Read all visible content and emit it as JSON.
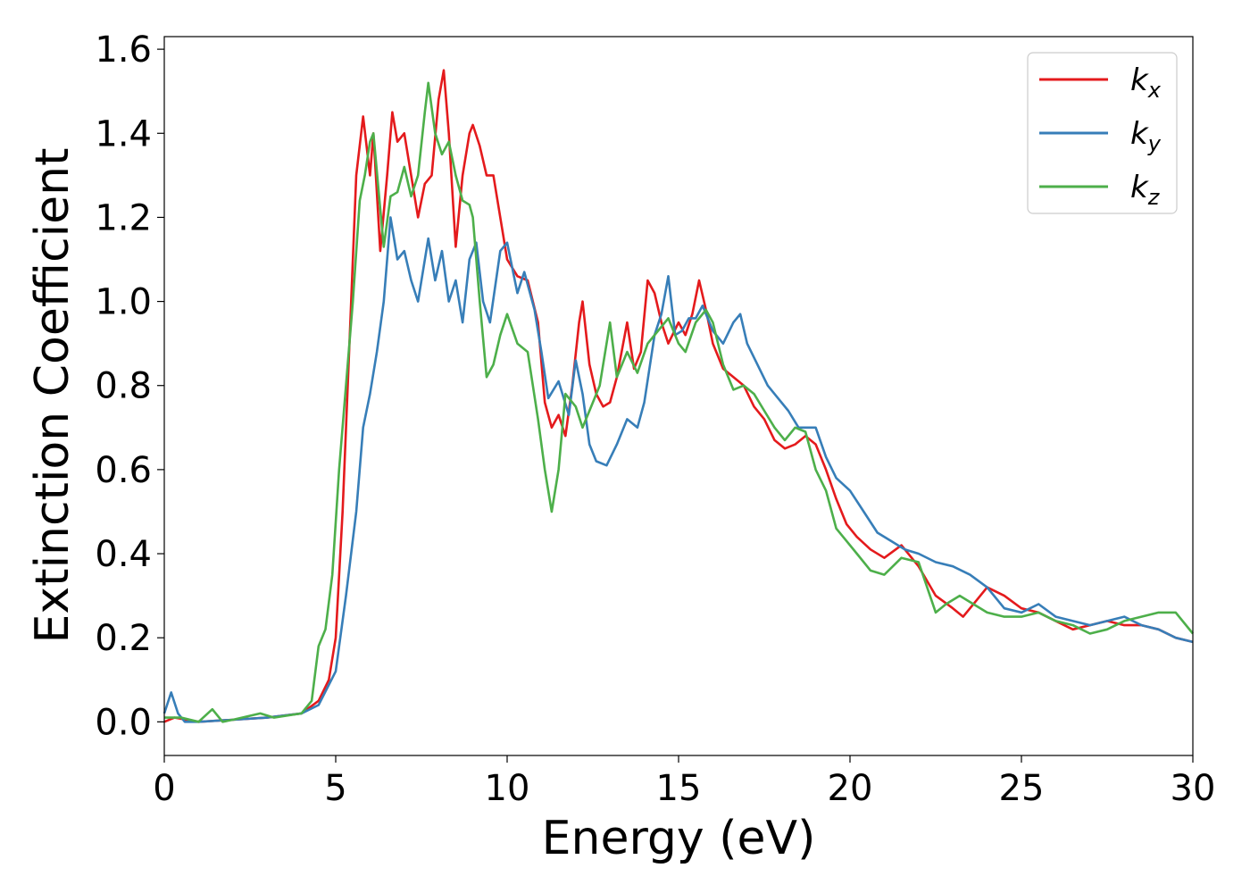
{
  "chart_data": {
    "type": "line",
    "xlabel": "Energy (eV)",
    "ylabel": "Extinction Coefficient",
    "xlim": [
      0,
      30
    ],
    "ylim": [
      -0.08,
      1.63
    ],
    "xticks": [
      0,
      5,
      10,
      15,
      20,
      25,
      30
    ],
    "xtick_labels": [
      "0",
      "5",
      "10",
      "15",
      "20",
      "25",
      "30"
    ],
    "yticks": [
      0.0,
      0.2,
      0.4,
      0.6,
      0.8,
      1.0,
      1.2,
      1.4,
      1.6
    ],
    "ytick_labels": [
      "0.0",
      "0.2",
      "0.4",
      "0.6",
      "0.8",
      "1.0",
      "1.2",
      "1.4",
      "1.6"
    ],
    "grid": false,
    "legend_position": "top-right",
    "series": [
      {
        "name": "k_x",
        "label_base": "k",
        "label_sub": "x",
        "color": "#e41a1c",
        "points": [
          [
            0,
            0.0
          ],
          [
            0.3,
            0.01
          ],
          [
            1,
            0.0
          ],
          [
            2,
            0.005
          ],
          [
            3,
            0.01
          ],
          [
            4,
            0.02
          ],
          [
            4.5,
            0.05
          ],
          [
            4.8,
            0.1
          ],
          [
            5.0,
            0.2
          ],
          [
            5.2,
            0.5
          ],
          [
            5.4,
            0.9
          ],
          [
            5.6,
            1.3
          ],
          [
            5.8,
            1.44
          ],
          [
            6.0,
            1.3
          ],
          [
            6.1,
            1.4
          ],
          [
            6.3,
            1.12
          ],
          [
            6.5,
            1.3
          ],
          [
            6.65,
            1.45
          ],
          [
            6.8,
            1.38
          ],
          [
            7.0,
            1.4
          ],
          [
            7.2,
            1.3
          ],
          [
            7.4,
            1.2
          ],
          [
            7.6,
            1.28
          ],
          [
            7.8,
            1.3
          ],
          [
            8.0,
            1.48
          ],
          [
            8.15,
            1.55
          ],
          [
            8.3,
            1.4
          ],
          [
            8.5,
            1.13
          ],
          [
            8.7,
            1.3
          ],
          [
            8.9,
            1.4
          ],
          [
            9.0,
            1.42
          ],
          [
            9.2,
            1.37
          ],
          [
            9.4,
            1.3
          ],
          [
            9.6,
            1.3
          ],
          [
            9.8,
            1.2
          ],
          [
            10.0,
            1.1
          ],
          [
            10.3,
            1.06
          ],
          [
            10.6,
            1.05
          ],
          [
            10.9,
            0.95
          ],
          [
            11.1,
            0.76
          ],
          [
            11.3,
            0.7
          ],
          [
            11.5,
            0.73
          ],
          [
            11.7,
            0.68
          ],
          [
            11.9,
            0.8
          ],
          [
            12.1,
            0.95
          ],
          [
            12.2,
            1.0
          ],
          [
            12.4,
            0.85
          ],
          [
            12.6,
            0.78
          ],
          [
            12.8,
            0.75
          ],
          [
            13.0,
            0.76
          ],
          [
            13.2,
            0.82
          ],
          [
            13.5,
            0.95
          ],
          [
            13.7,
            0.84
          ],
          [
            13.9,
            0.88
          ],
          [
            14.1,
            1.05
          ],
          [
            14.3,
            1.02
          ],
          [
            14.5,
            0.95
          ],
          [
            14.7,
            0.9
          ],
          [
            15.0,
            0.95
          ],
          [
            15.2,
            0.92
          ],
          [
            15.4,
            0.97
          ],
          [
            15.6,
            1.05
          ],
          [
            15.8,
            0.98
          ],
          [
            16.0,
            0.9
          ],
          [
            16.3,
            0.84
          ],
          [
            16.6,
            0.82
          ],
          [
            16.9,
            0.8
          ],
          [
            17.2,
            0.75
          ],
          [
            17.5,
            0.72
          ],
          [
            17.8,
            0.67
          ],
          [
            18.1,
            0.65
          ],
          [
            18.4,
            0.66
          ],
          [
            18.7,
            0.68
          ],
          [
            19.0,
            0.66
          ],
          [
            19.3,
            0.6
          ],
          [
            19.6,
            0.53
          ],
          [
            19.9,
            0.47
          ],
          [
            20.2,
            0.44
          ],
          [
            20.6,
            0.41
          ],
          [
            21.0,
            0.39
          ],
          [
            21.5,
            0.42
          ],
          [
            22.0,
            0.37
          ],
          [
            22.5,
            0.3
          ],
          [
            23.0,
            0.27
          ],
          [
            23.3,
            0.25
          ],
          [
            23.7,
            0.29
          ],
          [
            24.0,
            0.32
          ],
          [
            24.5,
            0.3
          ],
          [
            25.0,
            0.27
          ],
          [
            25.5,
            0.26
          ],
          [
            26.0,
            0.24
          ],
          [
            26.5,
            0.22
          ],
          [
            27.0,
            0.23
          ],
          [
            27.5,
            0.24
          ],
          [
            28.0,
            0.23
          ],
          [
            28.5,
            0.23
          ],
          [
            29.0,
            0.22
          ],
          [
            29.5,
            0.2
          ],
          [
            30.0,
            0.19
          ]
        ]
      },
      {
        "name": "k_y",
        "label_base": "k",
        "label_sub": "y",
        "color": "#377eb8",
        "points": [
          [
            0,
            0.02
          ],
          [
            0.2,
            0.07
          ],
          [
            0.4,
            0.02
          ],
          [
            0.6,
            0.0
          ],
          [
            1,
            0.0
          ],
          [
            2,
            0.005
          ],
          [
            3,
            0.01
          ],
          [
            4,
            0.02
          ],
          [
            4.5,
            0.04
          ],
          [
            5.0,
            0.12
          ],
          [
            5.3,
            0.3
          ],
          [
            5.6,
            0.5
          ],
          [
            5.8,
            0.7
          ],
          [
            6.0,
            0.78
          ],
          [
            6.2,
            0.88
          ],
          [
            6.4,
            1.0
          ],
          [
            6.6,
            1.2
          ],
          [
            6.8,
            1.1
          ],
          [
            7.0,
            1.12
          ],
          [
            7.2,
            1.05
          ],
          [
            7.4,
            1.0
          ],
          [
            7.7,
            1.15
          ],
          [
            7.9,
            1.05
          ],
          [
            8.1,
            1.12
          ],
          [
            8.3,
            1.0
          ],
          [
            8.5,
            1.05
          ],
          [
            8.7,
            0.95
          ],
          [
            8.9,
            1.1
          ],
          [
            9.1,
            1.14
          ],
          [
            9.3,
            1.0
          ],
          [
            9.5,
            0.95
          ],
          [
            9.8,
            1.12
          ],
          [
            10.0,
            1.14
          ],
          [
            10.3,
            1.02
          ],
          [
            10.5,
            1.07
          ],
          [
            10.8,
            0.98
          ],
          [
            11.0,
            0.88
          ],
          [
            11.2,
            0.77
          ],
          [
            11.5,
            0.81
          ],
          [
            11.8,
            0.73
          ],
          [
            12.0,
            0.86
          ],
          [
            12.2,
            0.78
          ],
          [
            12.4,
            0.66
          ],
          [
            12.6,
            0.62
          ],
          [
            12.9,
            0.61
          ],
          [
            13.2,
            0.66
          ],
          [
            13.5,
            0.72
          ],
          [
            13.8,
            0.7
          ],
          [
            14.0,
            0.76
          ],
          [
            14.3,
            0.92
          ],
          [
            14.5,
            0.97
          ],
          [
            14.7,
            1.06
          ],
          [
            14.9,
            0.92
          ],
          [
            15.1,
            0.93
          ],
          [
            15.3,
            0.96
          ],
          [
            15.5,
            0.96
          ],
          [
            15.7,
            0.99
          ],
          [
            16.0,
            0.93
          ],
          [
            16.3,
            0.9
          ],
          [
            16.6,
            0.95
          ],
          [
            16.8,
            0.97
          ],
          [
            17.0,
            0.9
          ],
          [
            17.3,
            0.85
          ],
          [
            17.6,
            0.8
          ],
          [
            17.9,
            0.77
          ],
          [
            18.2,
            0.74
          ],
          [
            18.5,
            0.7
          ],
          [
            18.8,
            0.7
          ],
          [
            19.0,
            0.7
          ],
          [
            19.3,
            0.63
          ],
          [
            19.6,
            0.58
          ],
          [
            20.0,
            0.55
          ],
          [
            20.4,
            0.5
          ],
          [
            20.8,
            0.45
          ],
          [
            21.2,
            0.43
          ],
          [
            21.6,
            0.41
          ],
          [
            22.0,
            0.4
          ],
          [
            22.5,
            0.38
          ],
          [
            23.0,
            0.37
          ],
          [
            23.5,
            0.35
          ],
          [
            24.0,
            0.32
          ],
          [
            24.5,
            0.27
          ],
          [
            25.0,
            0.26
          ],
          [
            25.5,
            0.28
          ],
          [
            26.0,
            0.25
          ],
          [
            26.5,
            0.24
          ],
          [
            27.0,
            0.23
          ],
          [
            27.5,
            0.24
          ],
          [
            28.0,
            0.25
          ],
          [
            28.5,
            0.23
          ],
          [
            29.0,
            0.22
          ],
          [
            29.5,
            0.2
          ],
          [
            30.0,
            0.19
          ]
        ]
      },
      {
        "name": "k_z",
        "label_base": "k",
        "label_sub": "z",
        "color": "#4daf4a",
        "points": [
          [
            0,
            0.01
          ],
          [
            0.5,
            0.01
          ],
          [
            1,
            0.0
          ],
          [
            1.4,
            0.03
          ],
          [
            1.7,
            0.0
          ],
          [
            2,
            0.005
          ],
          [
            2.8,
            0.02
          ],
          [
            3.2,
            0.01
          ],
          [
            4,
            0.02
          ],
          [
            4.3,
            0.05
          ],
          [
            4.5,
            0.18
          ],
          [
            4.7,
            0.22
          ],
          [
            4.9,
            0.35
          ],
          [
            5.1,
            0.6
          ],
          [
            5.3,
            0.8
          ],
          [
            5.5,
            1.0
          ],
          [
            5.7,
            1.24
          ],
          [
            5.85,
            1.3
          ],
          [
            6.0,
            1.38
          ],
          [
            6.1,
            1.4
          ],
          [
            6.3,
            1.22
          ],
          [
            6.4,
            1.13
          ],
          [
            6.6,
            1.25
          ],
          [
            6.8,
            1.26
          ],
          [
            7.0,
            1.32
          ],
          [
            7.2,
            1.25
          ],
          [
            7.4,
            1.3
          ],
          [
            7.6,
            1.45
          ],
          [
            7.7,
            1.52
          ],
          [
            7.9,
            1.4
          ],
          [
            8.1,
            1.35
          ],
          [
            8.3,
            1.38
          ],
          [
            8.5,
            1.3
          ],
          [
            8.7,
            1.24
          ],
          [
            8.9,
            1.23
          ],
          [
            9.0,
            1.2
          ],
          [
            9.2,
            1.0
          ],
          [
            9.4,
            0.82
          ],
          [
            9.6,
            0.85
          ],
          [
            9.8,
            0.92
          ],
          [
            10.0,
            0.97
          ],
          [
            10.3,
            0.9
          ],
          [
            10.6,
            0.88
          ],
          [
            10.9,
            0.72
          ],
          [
            11.1,
            0.6
          ],
          [
            11.3,
            0.5
          ],
          [
            11.5,
            0.6
          ],
          [
            11.7,
            0.78
          ],
          [
            12.0,
            0.75
          ],
          [
            12.2,
            0.7
          ],
          [
            12.4,
            0.74
          ],
          [
            12.7,
            0.8
          ],
          [
            13.0,
            0.95
          ],
          [
            13.2,
            0.82
          ],
          [
            13.5,
            0.88
          ],
          [
            13.8,
            0.83
          ],
          [
            14.1,
            0.9
          ],
          [
            14.4,
            0.93
          ],
          [
            14.7,
            0.96
          ],
          [
            15.0,
            0.9
          ],
          [
            15.2,
            0.88
          ],
          [
            15.5,
            0.95
          ],
          [
            15.8,
            0.98
          ],
          [
            16.0,
            0.95
          ],
          [
            16.3,
            0.85
          ],
          [
            16.6,
            0.79
          ],
          [
            16.9,
            0.8
          ],
          [
            17.2,
            0.78
          ],
          [
            17.5,
            0.74
          ],
          [
            17.8,
            0.7
          ],
          [
            18.1,
            0.67
          ],
          [
            18.4,
            0.7
          ],
          [
            18.7,
            0.69
          ],
          [
            19.0,
            0.6
          ],
          [
            19.3,
            0.55
          ],
          [
            19.6,
            0.46
          ],
          [
            19.9,
            0.43
          ],
          [
            20.2,
            0.4
          ],
          [
            20.6,
            0.36
          ],
          [
            21.0,
            0.35
          ],
          [
            21.5,
            0.39
          ],
          [
            22.0,
            0.38
          ],
          [
            22.5,
            0.26
          ],
          [
            22.8,
            0.28
          ],
          [
            23.2,
            0.3
          ],
          [
            23.6,
            0.28
          ],
          [
            24.0,
            0.26
          ],
          [
            24.5,
            0.25
          ],
          [
            25.0,
            0.25
          ],
          [
            25.5,
            0.26
          ],
          [
            26.0,
            0.24
          ],
          [
            26.5,
            0.23
          ],
          [
            27.0,
            0.21
          ],
          [
            27.5,
            0.22
          ],
          [
            28.0,
            0.24
          ],
          [
            28.5,
            0.25
          ],
          [
            29.0,
            0.26
          ],
          [
            29.5,
            0.26
          ],
          [
            30.0,
            0.21
          ]
        ]
      }
    ]
  }
}
